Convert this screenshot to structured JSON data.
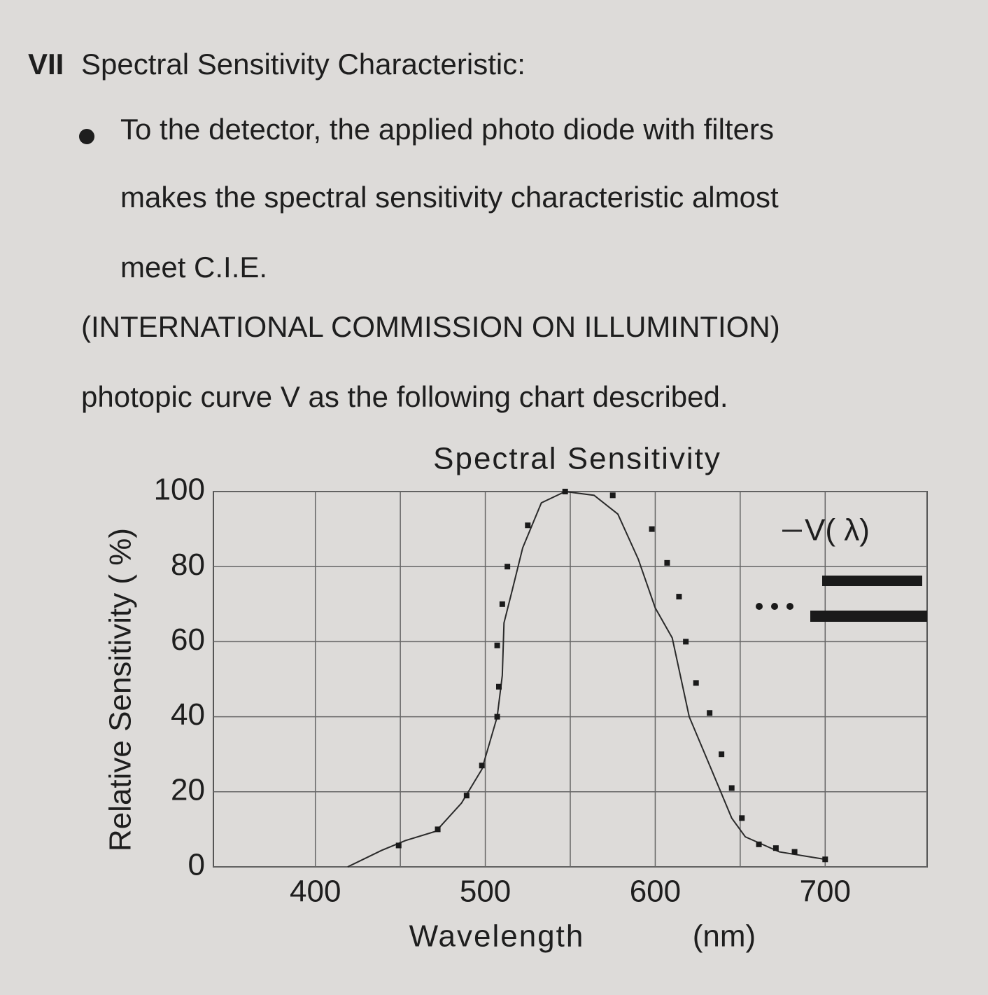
{
  "section": {
    "number": "VII",
    "title": "Spectral Sensitivity Characteristic:",
    "lines": [
      "To the detector, the applied photo diode with filters",
      "makes the spectral sensitivity characteristic almost",
      "meet C.I.E.",
      "(INTERNATIONAL COMMISSION ON ILLUMINTION)",
      "photopic curve V as the following chart described."
    ]
  },
  "chart_data": {
    "type": "line",
    "title": "Spectral Sensitivity",
    "xlabel": "Wavelength",
    "xunit": "(nm)",
    "ylabel": "Relative Sensitivity ( %)",
    "xlim": [
      340,
      760
    ],
    "xticks": [
      400,
      500,
      600,
      700
    ],
    "xminor": [
      450,
      550,
      650
    ],
    "ylim": [
      0,
      100
    ],
    "yticks": [
      0,
      20,
      40,
      60,
      80,
      100
    ],
    "grid": true,
    "legend": "upper right",
    "series": [
      {
        "name": "V( λ)",
        "color": "#2a2a2a",
        "style": "line",
        "x": [
          419,
          439,
          453,
          471,
          486,
          498,
          507,
          510,
          511,
          516,
          522,
          533,
          547,
          564,
          578,
          590,
          600,
          610,
          620,
          633,
          645,
          653,
          673,
          700
        ],
        "values": [
          0,
          4.4,
          7,
          9.5,
          17,
          26,
          40,
          51,
          65,
          74,
          85,
          97,
          100,
          99,
          94,
          82,
          69,
          61,
          40,
          26,
          13,
          8,
          4,
          2
        ]
      },
      {
        "color": "#1a1a1a",
        "style": "dots",
        "x": [
          449,
          472,
          489,
          498,
          507,
          508,
          507,
          510,
          513,
          525,
          547,
          575,
          598,
          607,
          614,
          618,
          624,
          632,
          639,
          645,
          651,
          661,
          671,
          682,
          700
        ],
        "values": [
          5.7,
          10,
          19,
          27,
          40,
          48,
          59,
          70,
          80,
          91,
          100,
          99,
          90,
          81,
          72,
          60,
          49,
          41,
          30,
          21,
          13,
          6,
          5,
          4,
          2
        ]
      }
    ]
  }
}
